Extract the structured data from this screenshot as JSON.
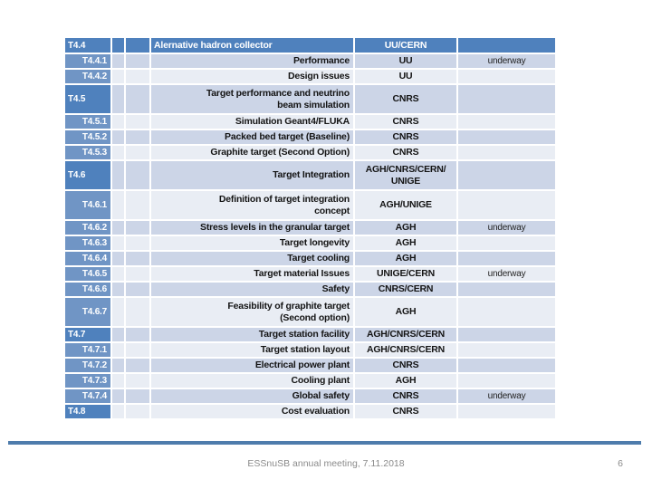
{
  "colors": {
    "header_blue": "#4f81bd",
    "sub_id_blue": "#7095c5",
    "band_dark": "#ccd5e7",
    "band_light": "#e9edf4",
    "divider_blue": "#4e7cac",
    "footer_gray": "#8a8a8a"
  },
  "footer": {
    "meeting": "ESSnuSB annual meeting, 7.11.2018",
    "page": "6"
  },
  "table": {
    "rows": [
      {
        "id": "T4.4",
        "type": "header",
        "band": "header",
        "lines": 1,
        "desc": "Alernative hadron collector",
        "org": "UU/CERN",
        "status": ""
      },
      {
        "id": "T4.4.1",
        "type": "sub",
        "band": "dark",
        "lines": 1,
        "desc": "Performance",
        "org": "UU",
        "status": "underway"
      },
      {
        "id": "T4.4.2",
        "type": "sub",
        "band": "light",
        "lines": 1,
        "desc": "Design issues",
        "org": "UU",
        "status": ""
      },
      {
        "id": "T4.5",
        "type": "main",
        "band": "dark",
        "lines": 2,
        "desc": "Target performance and neutrino\nbeam simulation",
        "org": "CNRS",
        "status": ""
      },
      {
        "id": "T4.5.1",
        "type": "sub",
        "band": "light",
        "lines": 1,
        "desc": "Simulation Geant4/FLUKA",
        "org": "CNRS",
        "status": ""
      },
      {
        "id": "T4.5.2",
        "type": "sub",
        "band": "dark",
        "lines": 1,
        "desc": "Packed bed target (Baseline)",
        "org": "CNRS",
        "status": ""
      },
      {
        "id": "T4.5.3",
        "type": "sub",
        "band": "light",
        "lines": 1,
        "desc": "Graphite target (Second Option)",
        "org": "CNRS",
        "status": ""
      },
      {
        "id": "T4.6",
        "type": "main",
        "band": "dark",
        "lines": 2,
        "desc": "Target Integration",
        "org": "AGH/CNRS/CERN/\nUNIGE",
        "status": ""
      },
      {
        "id": "T4.6.1",
        "type": "sub",
        "band": "light",
        "lines": 2,
        "desc": "Definition of target integration\nconcept",
        "org": "AGH/UNIGE",
        "status": ""
      },
      {
        "id": "T4.6.2",
        "type": "sub",
        "band": "dark",
        "lines": 1,
        "desc": "Stress levels in the granular target",
        "org": "AGH",
        "status": "underway"
      },
      {
        "id": "T4.6.3",
        "type": "sub",
        "band": "light",
        "lines": 1,
        "desc": "Target longevity",
        "org": "AGH",
        "status": ""
      },
      {
        "id": "T4.6.4",
        "type": "sub",
        "band": "dark",
        "lines": 1,
        "desc": "Target cooling",
        "org": "AGH",
        "status": ""
      },
      {
        "id": "T4.6.5",
        "type": "sub",
        "band": "light",
        "lines": 1,
        "desc": "Target material Issues",
        "org": "UNIGE/CERN",
        "status": "underway"
      },
      {
        "id": "T4.6.6",
        "type": "sub",
        "band": "dark",
        "lines": 1,
        "desc": "Safety",
        "org": "CNRS/CERN",
        "status": ""
      },
      {
        "id": "T4.6.7",
        "type": "sub",
        "band": "light",
        "lines": 2,
        "desc": "Feasibility of graphite target\n(Second option)",
        "org": "AGH",
        "status": ""
      },
      {
        "id": "T4.7",
        "type": "main",
        "band": "dark",
        "lines": 1,
        "desc": "Target station facility",
        "org": "AGH/CNRS/CERN",
        "status": ""
      },
      {
        "id": "T4.7.1",
        "type": "sub",
        "band": "light",
        "lines": 1,
        "desc": "Target station layout",
        "org": "AGH/CNRS/CERN",
        "status": ""
      },
      {
        "id": "T4.7.2",
        "type": "sub",
        "band": "dark",
        "lines": 1,
        "desc": "Electrical power plant",
        "org": "CNRS",
        "status": ""
      },
      {
        "id": "T4.7.3",
        "type": "sub",
        "band": "light",
        "lines": 1,
        "desc": "Cooling plant",
        "org": "AGH",
        "status": ""
      },
      {
        "id": "T4.7.4",
        "type": "sub",
        "band": "dark",
        "lines": 1,
        "desc": "Global safety",
        "org": "CNRS",
        "status": "underway"
      },
      {
        "id": "T4.8",
        "type": "main",
        "band": "light",
        "lines": 1,
        "desc": "Cost evaluation",
        "org": "CNRS",
        "status": ""
      }
    ]
  }
}
